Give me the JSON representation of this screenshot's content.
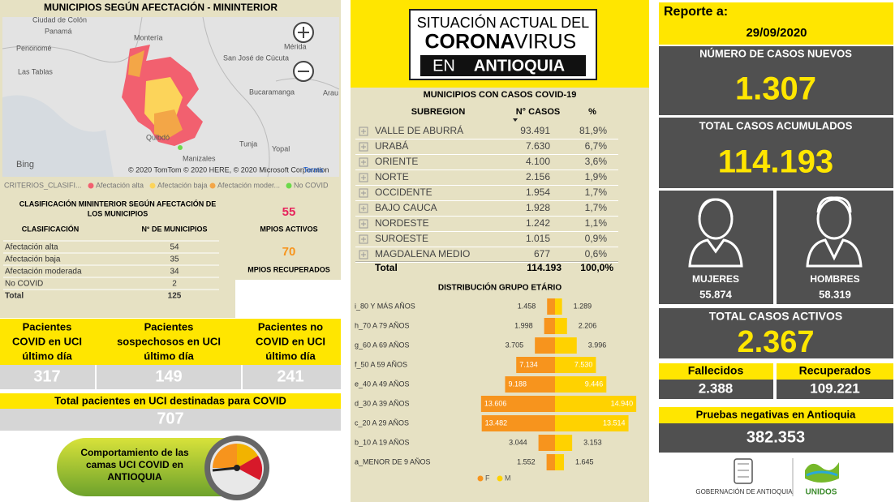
{
  "map": {
    "title": "MUNICIPIOS SEGÚN AFECTACIÓN - MININTERIOR",
    "places": [
      "Ciudad de Colón",
      "Panamá",
      "Penonomé",
      "Las Tablas",
      "Montería",
      "San José de Cúcuta",
      "Mérida",
      "Bucaramanga",
      "Arau",
      "Quibdó",
      "Tunja",
      "Yopal",
      "Manizales"
    ],
    "bing": "Bing",
    "attribution": "© 2020 TomTom © 2020 HERE, © 2020 Microsoft Corporation",
    "terms": "Terms",
    "legend_title": "CRITERIOS_CLASIFI...",
    "legend": [
      "Afectación alta",
      "Afectación baja",
      "Afectación moder...",
      "No COVID"
    ]
  },
  "classification": {
    "title": [
      "CLASIFICACIÓN MININTERIOR SEGÚN AFECTACIÓN DE",
      "LOS MUNICIPIOS"
    ],
    "headers": [
      "CLASIFICACIÓN",
      "N° DE MUNICIPIOS"
    ],
    "rows": [
      [
        "Afectación alta",
        "54"
      ],
      [
        "Afectación baja",
        "35"
      ],
      [
        "Afectación moderada",
        "34"
      ],
      [
        "No COVID",
        "2"
      ],
      [
        "Total",
        "125"
      ]
    ]
  },
  "municipalities": {
    "active": "55",
    "active_label": "MPIOS ACTIVOS",
    "recovered": "70",
    "recovered_label": "MPIOS RECUPERADOS"
  },
  "uci": {
    "headers": [
      [
        "Pacientes",
        "COVID en UCI",
        "último día"
      ],
      [
        "Pacientes",
        "sospechosos en UCI",
        "último día"
      ],
      [
        "Pacientes no",
        "COVID en UCI",
        "último día"
      ]
    ],
    "values": [
      "317",
      "149",
      "241"
    ],
    "total_label": "Total pacientes en UCI destinadas para COVID",
    "total": "707"
  },
  "button": {
    "lines": [
      "Comportamiento de las",
      "camas UCI COVID en",
      "ANTIOQUIA"
    ]
  },
  "banner": {
    "line1": "SITUACIÓN ACTUAL DEL",
    "corona": "CORONA",
    "virus": "VIRUS",
    "en": "EN",
    "antioquia": "ANTIOQUIA"
  },
  "cases_table": {
    "title": "MUNICIPIOS CON CASOS COVID-19",
    "headers": [
      "SUBREGION",
      "N° CASOS",
      "%"
    ],
    "rows": [
      [
        "VALLE DE ABURRÁ",
        "93.491",
        "81,9%"
      ],
      [
        "URABÁ",
        "7.630",
        "6,7%"
      ],
      [
        "ORIENTE",
        "4.100",
        "3,6%"
      ],
      [
        "NORTE",
        "2.156",
        "1,9%"
      ],
      [
        "OCCIDENTE",
        "1.954",
        "1,7%"
      ],
      [
        "BAJO CAUCA",
        "1.928",
        "1,7%"
      ],
      [
        "NORDESTE",
        "1.242",
        "1,1%"
      ],
      [
        "SUROESTE",
        "1.015",
        "0,9%"
      ],
      [
        "MAGDALENA MEDIO",
        "677",
        "0,6%"
      ]
    ],
    "total": [
      "Total",
      "114.193",
      "100,0%"
    ]
  },
  "chart_data": {
    "type": "bar",
    "horizontal": true,
    "title": "DISTRIBUCIÓN GRUPO ETÁRIO",
    "categories": [
      "i_80 Y MÁS AÑOS",
      "h_70 A 79 AÑOS",
      "g_60 A 69 AÑOS",
      "f_50 A 59 AÑOS",
      "e_40 A 49 AÑOS",
      "d_30 A 39 AÑOS",
      "c_20 A 29 AÑOS",
      "b_10 A 19 AÑOS",
      "a_MENOR DE 9 AÑOS"
    ],
    "series": [
      {
        "name": "F",
        "color": "#f7941d",
        "values": [
          1458,
          1998,
          3705,
          7134,
          9188,
          13606,
          13482,
          3044,
          1552
        ],
        "value_labels": [
          "1.458",
          "1.998",
          "3.705",
          "7.134",
          "9.188",
          "13.606",
          "13.482",
          "3.044",
          "1.552"
        ]
      },
      {
        "name": "M",
        "color": "#ffd200",
        "values": [
          1289,
          2206,
          3996,
          7530,
          9446,
          14940,
          13514,
          3153,
          1645
        ],
        "value_labels": [
          "1.289",
          "2.206",
          "3.996",
          "7.530",
          "9.446",
          "14.940",
          "13.514",
          "3.153",
          "1.645"
        ]
      }
    ]
  },
  "report": {
    "label": "Reporte a:",
    "date": "29/09/2020",
    "new_cases_label": "NÚMERO DE CASOS NUEVOS",
    "new_cases": "1.307",
    "total_label": "TOTAL CASOS ACUMULADOS",
    "total": "114.193",
    "women_label": "MUJERES",
    "women": "55.874",
    "men_label": "HOMBRES",
    "men": "58.319",
    "active_label": "TOTAL CASOS ACTIVOS",
    "active": "2.367",
    "deaths_label": "Fallecidos",
    "deaths": "2.388",
    "recovered_label": "Recuperados",
    "recovered": "109.221",
    "negative_label": "Pruebas negativas en Antioquia",
    "negative": "382.353"
  },
  "footer": {
    "gov": "GOBERNACIÓN DE ANTIOQUIA",
    "unidos": "UNIDOS"
  }
}
